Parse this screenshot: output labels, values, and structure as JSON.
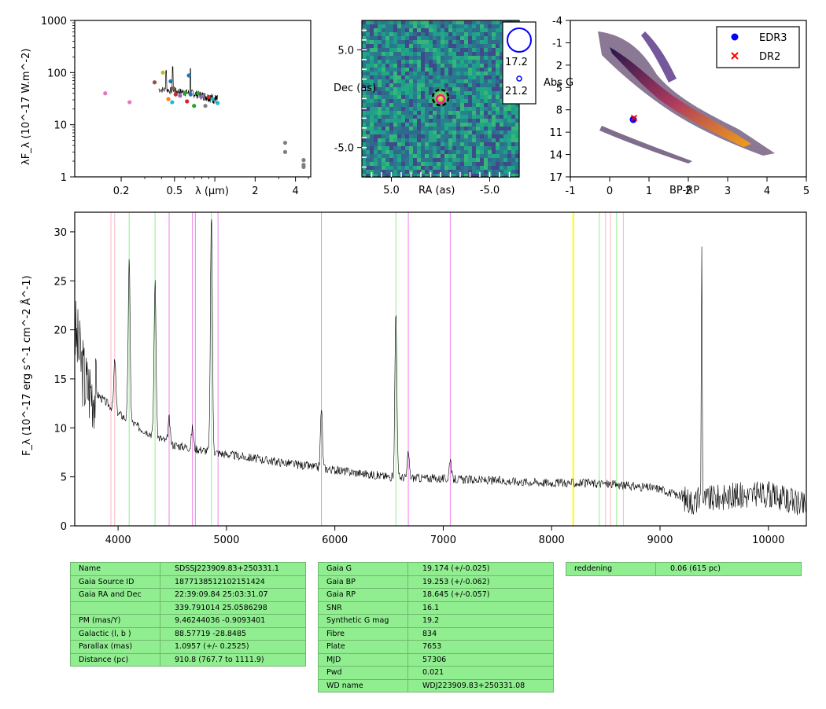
{
  "colors": {
    "spec": "#000000",
    "edr3": "#0000ff",
    "dr2": "#ff0000",
    "table_bg": "#90ee90",
    "balmer": "#90ee90",
    "helium": "#ee82ee",
    "calcium": "#ffb6c1",
    "marker": "#ffff00"
  },
  "chart_data": [
    {
      "type": "scatter",
      "xlabel": "λ (μm)",
      "ylabel": "λF_λ (10^-17 W.m^-2)",
      "xscale": "log",
      "yscale": "log",
      "xlim": [
        0.09,
        5.2
      ],
      "ylim": [
        1,
        1000
      ],
      "xticks": [
        "0.2",
        "0.5",
        "1",
        "2",
        "4"
      ],
      "yticks": [
        "1",
        "10",
        "100",
        "1000"
      ],
      "points": [
        {
          "x": 0.152,
          "y": 40,
          "color": "#e377c2"
        },
        {
          "x": 0.231,
          "y": 27,
          "color": "#e377c2"
        },
        {
          "x": 0.355,
          "y": 65,
          "color": "#8c564b"
        },
        {
          "x": 0.41,
          "y": 100,
          "color": "#bcbd22"
        },
        {
          "x": 0.45,
          "y": 31,
          "color": "#ff7f0e"
        },
        {
          "x": 0.468,
          "y": 68,
          "color": "#1f77b4"
        },
        {
          "x": 0.48,
          "y": 27,
          "color": "#17becf"
        },
        {
          "x": 0.49,
          "y": 50,
          "color": "#8c564b"
        },
        {
          "x": 0.51,
          "y": 38,
          "color": "#d62728"
        },
        {
          "x": 0.55,
          "y": 36,
          "color": "#9467bd"
        },
        {
          "x": 0.6,
          "y": 41,
          "color": "#2ca02c"
        },
        {
          "x": 0.62,
          "y": 28,
          "color": "#d62728"
        },
        {
          "x": 0.64,
          "y": 88,
          "color": "#1f77b4"
        },
        {
          "x": 0.66,
          "y": 38,
          "color": "#1f77b4"
        },
        {
          "x": 0.7,
          "y": 23,
          "color": "#2ca02c"
        },
        {
          "x": 0.75,
          "y": 40,
          "color": "#2ca02c"
        },
        {
          "x": 0.8,
          "y": 35,
          "color": "#9467bd"
        },
        {
          "x": 0.85,
          "y": 23,
          "color": "#7f7f7f"
        },
        {
          "x": 0.9,
          "y": 34,
          "color": "#d62728"
        },
        {
          "x": 0.96,
          "y": 31,
          "color": "#17becf"
        },
        {
          "x": 1.05,
          "y": 26,
          "color": "#17becf"
        },
        {
          "x": 3.35,
          "y": 4.5,
          "color": "#7f7f7f"
        },
        {
          "x": 3.35,
          "y": 3.0,
          "color": "#7f7f7f"
        },
        {
          "x": 4.6,
          "y": 2.1,
          "color": "#7f7f7f"
        },
        {
          "x": 4.6,
          "y": 1.7,
          "color": "#7f7f7f"
        },
        {
          "x": 4.6,
          "y": 1.55,
          "color": "#7f7f7f"
        }
      ]
    },
    {
      "type": "heatmap",
      "xlabel": "RA (as)",
      "ylabel": "Dec (as)",
      "xlim": [
        8,
        -8
      ],
      "ylim": [
        -8,
        8
      ],
      "xticks": [
        "5.0",
        "-5.0"
      ],
      "yticks": [
        "5.0",
        "-5.0"
      ],
      "legend": [
        {
          "label": "17.2"
        },
        {
          "label": "21.2"
        }
      ]
    },
    {
      "type": "scatter",
      "xlabel": "BP-RP",
      "ylabel": "Abs G",
      "xlim": [
        -1,
        5
      ],
      "ylim": [
        17,
        -4
      ],
      "xticks": [
        "-1",
        "0",
        "1",
        "2",
        "3",
        "4",
        "5"
      ],
      "yticks": [
        "-4",
        "-1",
        "2",
        "5",
        "8",
        "11",
        "14",
        "17"
      ],
      "legend_position": "top-right",
      "series": [
        {
          "name": "EDR3",
          "x": [
            0.6
          ],
          "y": [
            9.3
          ],
          "marker": "circle",
          "color": "#0000ff"
        },
        {
          "name": "DR2",
          "x": [
            0.62
          ],
          "y": [
            9.1
          ],
          "marker": "x",
          "color": "#ff0000"
        }
      ]
    },
    {
      "type": "line",
      "xlabel": "",
      "ylabel": "F_λ (10^-17 erg s^-1 cm^-2 Å^-1)",
      "xlim": [
        3600,
        10350
      ],
      "ylim": [
        0,
        32
      ],
      "xticks": [
        "4000",
        "5000",
        "6000",
        "7000",
        "8000",
        "9000",
        "10000"
      ],
      "yticks": [
        "0",
        "5",
        "10",
        "15",
        "20",
        "25",
        "30"
      ],
      "continuum": [
        [
          3600,
          20
        ],
        [
          3700,
          14.5
        ],
        [
          3900,
          12.5
        ],
        [
          4000,
          11.5
        ],
        [
          4200,
          10
        ],
        [
          4500,
          8.3
        ],
        [
          5000,
          7.3
        ],
        [
          5500,
          6.5
        ],
        [
          6000,
          5.7
        ],
        [
          6500,
          5.0
        ],
        [
          7000,
          4.8
        ],
        [
          7500,
          4.6
        ],
        [
          8000,
          4.4
        ],
        [
          8500,
          4.3
        ],
        [
          8800,
          4.0
        ],
        [
          9000,
          3.8
        ],
        [
          9300,
          2.5
        ],
        [
          9600,
          3.0
        ],
        [
          10000,
          3.2
        ],
        [
          10350,
          2.0
        ]
      ],
      "emission_lines": [
        [
          3970,
          17
        ],
        [
          4102,
          27
        ],
        [
          4341,
          25
        ],
        [
          4471,
          11
        ],
        [
          4686,
          10
        ],
        [
          4861,
          32
        ],
        [
          5876,
          12
        ],
        [
          6563,
          22
        ],
        [
          6678,
          7.5
        ],
        [
          7065,
          7
        ],
        [
          9385,
          30
        ]
      ],
      "lines_balmer": [
        4102,
        4341,
        4861,
        6563,
        8440,
        8600
      ],
      "lines_helium": [
        4471,
        4686,
        4713,
        4922,
        5876,
        6678,
        7065
      ],
      "lines_calcium": [
        3934,
        3969,
        8498,
        8542,
        8662
      ],
      "marker_line": 8200
    }
  ],
  "tables": {
    "t1": [
      [
        "Name",
        "SDSSJ223909.83+250331.1"
      ],
      [
        "Gaia Source ID",
        "1877138512102151424"
      ],
      [
        "Gaia RA and Dec",
        "22:39:09.84    25:03:31.07"
      ],
      [
        "",
        "339.791014    25.0586298"
      ],
      [
        "PM (mas/Y)",
        "9.46244036    -0.9093401"
      ],
      [
        "Galactic (l, b )",
        "88.57719    -28.8485"
      ],
      [
        "Parallax (mas)",
        "1.0957 (+/- 0.2525)"
      ],
      [
        "Distance (pc)",
        "910.8 (767.7 to 1111.9)"
      ]
    ],
    "t2": [
      [
        "Gaia G",
        "19.174 (+/-0.025)"
      ],
      [
        "Gaia BP",
        "19.253 (+/-0.062)"
      ],
      [
        "Gaia RP",
        "18.645 (+/-0.057)"
      ],
      [
        "SNR",
        "16.1"
      ],
      [
        "Synthetic G mag",
        "19.2"
      ],
      [
        "Fibre",
        "834"
      ],
      [
        "Plate",
        "7653"
      ],
      [
        "MJD",
        "57306"
      ],
      [
        "Pwd",
        "0.021"
      ],
      [
        "WD name",
        "WDJ223909.83+250331.08"
      ]
    ],
    "t3": [
      [
        "reddening",
        "0.06 (615 pc)"
      ]
    ]
  }
}
